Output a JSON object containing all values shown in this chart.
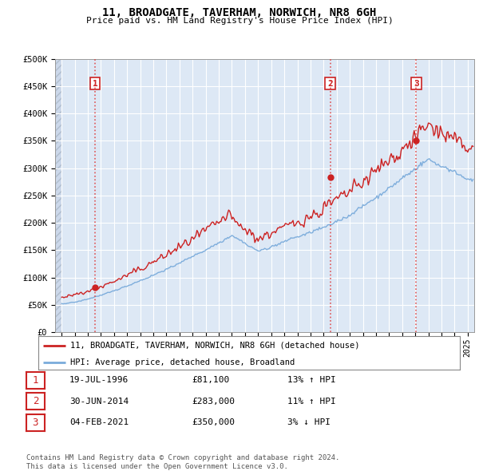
{
  "title_line1": "11, BROADGATE, TAVERHAM, NORWICH, NR8 6GH",
  "title_line2": "Price paid vs. HM Land Registry's House Price Index (HPI)",
  "xlim_start": 1993.5,
  "xlim_end": 2025.5,
  "ylim_min": 0,
  "ylim_max": 500000,
  "yticks": [
    0,
    50000,
    100000,
    150000,
    200000,
    250000,
    300000,
    350000,
    400000,
    450000,
    500000
  ],
  "ytick_labels": [
    "£0",
    "£50K",
    "£100K",
    "£150K",
    "£200K",
    "£250K",
    "£300K",
    "£350K",
    "£400K",
    "£450K",
    "£500K"
  ],
  "hpi_color": "#7aabdb",
  "price_color": "#cc2222",
  "sale_points": [
    {
      "year": 1996.55,
      "value": 81100,
      "label": "1"
    },
    {
      "year": 2014.5,
      "value": 283000,
      "label": "2"
    },
    {
      "year": 2021.08,
      "value": 350000,
      "label": "3"
    }
  ],
  "vline_color": "#dd4444",
  "legend_price_label": "11, BROADGATE, TAVERHAM, NORWICH, NR8 6GH (detached house)",
  "legend_hpi_label": "HPI: Average price, detached house, Broadland",
  "table_rows": [
    {
      "num": "1",
      "date": "19-JUL-1996",
      "price": "£81,100",
      "hpi": "13% ↑ HPI"
    },
    {
      "num": "2",
      "date": "30-JUN-2014",
      "price": "£283,000",
      "hpi": "11% ↑ HPI"
    },
    {
      "num": "3",
      "date": "04-FEB-2021",
      "price": "£350,000",
      "hpi": "3% ↓ HPI"
    }
  ],
  "footnote": "Contains HM Land Registry data © Crown copyright and database right 2024.\nThis data is licensed under the Open Government Licence v3.0.",
  "bg_color": "#ffffff",
  "plot_bg_color": "#dde8f5",
  "grid_color": "#ffffff"
}
